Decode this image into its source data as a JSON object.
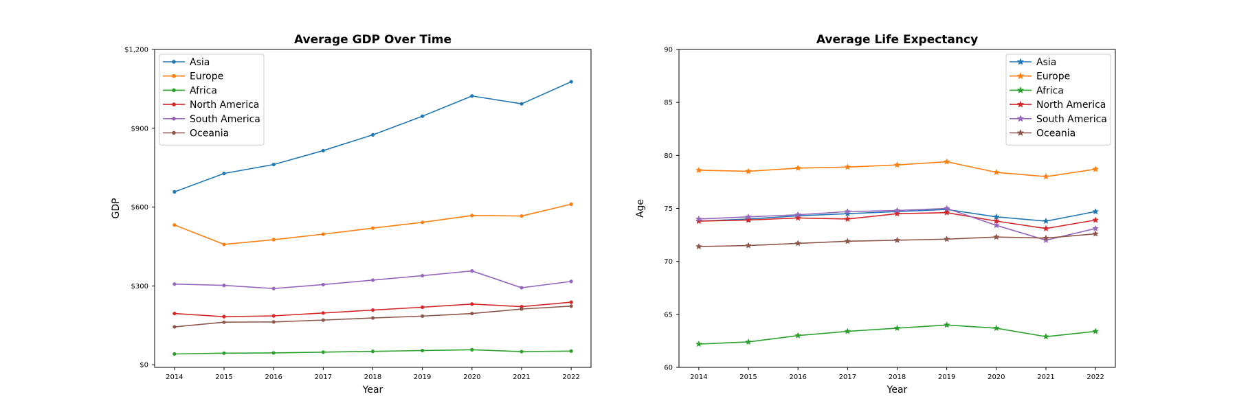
{
  "chart_data": [
    {
      "type": "line",
      "title": "Average GDP Over Time",
      "xlabel": "Year",
      "ylabel": "GDP",
      "x": [
        2014,
        2015,
        2016,
        2017,
        2018,
        2019,
        2020,
        2021,
        2022
      ],
      "xlim": [
        2013.6,
        2022.4
      ],
      "ylim": [
        -10,
        1200
      ],
      "y_ticks": [
        0,
        300,
        600,
        900,
        1200
      ],
      "y_tick_labels": [
        "$0",
        "$300",
        "$600",
        "$900",
        "$1,200"
      ],
      "marker": "circle",
      "legend_position": "upper left",
      "grid": false,
      "series": [
        {
          "name": "Asia",
          "color": "#1f77b4",
          "values": [
            658,
            728,
            762,
            815,
            875,
            946,
            1023,
            993,
            1077
          ]
        },
        {
          "name": "Europe",
          "color": "#ff7f0e",
          "values": [
            532,
            458,
            476,
            497,
            520,
            542,
            568,
            566,
            611
          ]
        },
        {
          "name": "Africa",
          "color": "#2ca02c",
          "values": [
            41,
            44,
            45,
            48,
            51,
            54,
            57,
            50,
            52
          ]
        },
        {
          "name": "North America",
          "color": "#d62728",
          "values": [
            195,
            183,
            186,
            197,
            208,
            219,
            231,
            221,
            238
          ]
        },
        {
          "name": "South America",
          "color": "#9467bd",
          "values": [
            307,
            302,
            290,
            305,
            322,
            339,
            357,
            293,
            317
          ]
        },
        {
          "name": "Oceania",
          "color": "#8c564b",
          "values": [
            144,
            162,
            163,
            170,
            178,
            185,
            195,
            212,
            223
          ]
        }
      ]
    },
    {
      "type": "line",
      "title": "Average Life Expectancy",
      "xlabel": "Year",
      "ylabel": "Age",
      "x": [
        2014,
        2015,
        2016,
        2017,
        2018,
        2019,
        2020,
        2021,
        2022
      ],
      "xlim": [
        2013.6,
        2022.4
      ],
      "ylim": [
        60,
        90
      ],
      "y_ticks": [
        60,
        65,
        70,
        75,
        80,
        85,
        90
      ],
      "y_tick_labels": [
        "60",
        "65",
        "70",
        "75",
        "80",
        "85",
        "90"
      ],
      "marker": "star",
      "legend_position": "upper right",
      "grid": false,
      "series": [
        {
          "name": "Asia",
          "color": "#1f77b4",
          "values": [
            73.8,
            74.0,
            74.3,
            74.5,
            74.7,
            74.9,
            74.2,
            73.8,
            74.7
          ]
        },
        {
          "name": "Europe",
          "color": "#ff7f0e",
          "values": [
            78.6,
            78.5,
            78.8,
            78.9,
            79.1,
            79.4,
            78.4,
            78.0,
            78.7
          ]
        },
        {
          "name": "Africa",
          "color": "#2ca02c",
          "values": [
            62.2,
            62.4,
            63.0,
            63.4,
            63.7,
            64.0,
            63.7,
            62.9,
            63.4
          ]
        },
        {
          "name": "North America",
          "color": "#d62728",
          "values": [
            73.8,
            73.9,
            74.1,
            74.0,
            74.5,
            74.6,
            73.8,
            73.1,
            73.9
          ]
        },
        {
          "name": "South America",
          "color": "#9467bd",
          "values": [
            74.0,
            74.2,
            74.4,
            74.7,
            74.8,
            75.0,
            73.4,
            72.0,
            73.1
          ]
        },
        {
          "name": "Oceania",
          "color": "#8c564b",
          "values": [
            71.4,
            71.5,
            71.7,
            71.9,
            72.0,
            72.1,
            72.3,
            72.2,
            72.6
          ]
        }
      ]
    }
  ]
}
